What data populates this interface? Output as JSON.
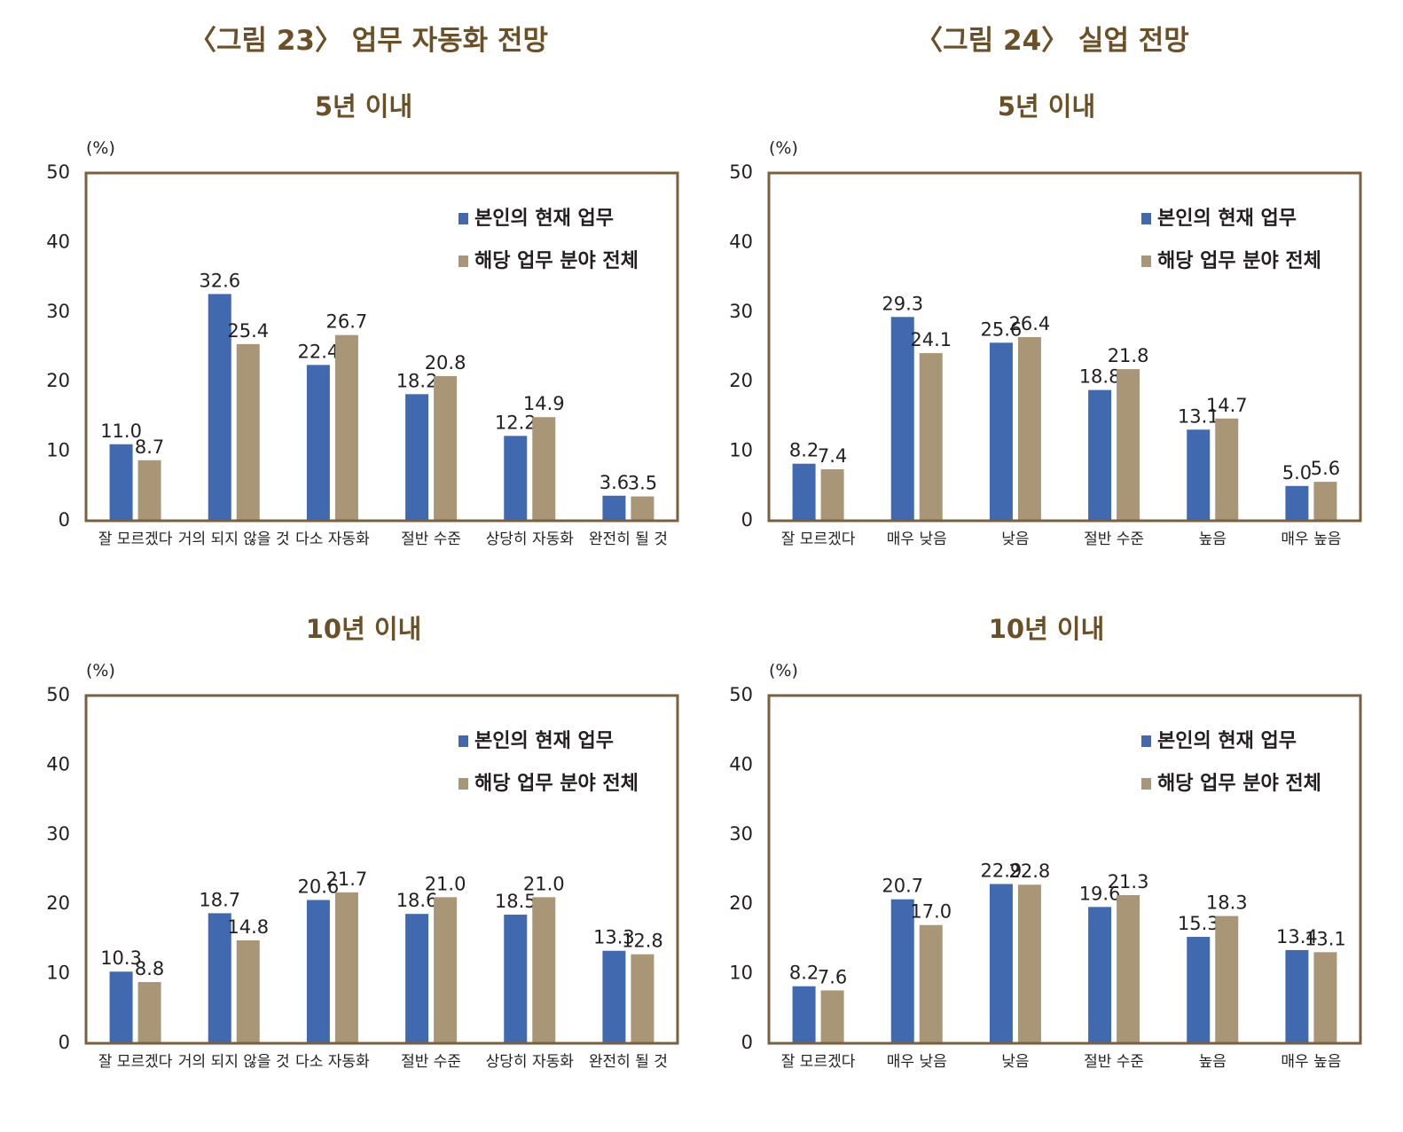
{
  "figures": [
    {
      "title": "〈그림 23〉 업무 자동화 전망"
    },
    {
      "title": "〈그림 24〉 실업 전망"
    }
  ],
  "colors": {
    "series1": "#4169b0",
    "series2": "#a89677",
    "frame": "#7a6040",
    "subtitle": "#6b4f26"
  },
  "chart_data": [
    {
      "type": "bar",
      "title": "5년 이내",
      "unit_label": "(%)",
      "ylim": [
        0,
        50
      ],
      "yticks": [
        0,
        10,
        20,
        30,
        40,
        50
      ],
      "legend": "top-right",
      "categories": [
        "잘 모르겠다",
        "거의 되지 않을 것",
        "다소 자동화",
        "절반 수준",
        "상당히 자동화",
        "완전히 될 것"
      ],
      "series": [
        {
          "name": "본인의 현재 업무",
          "values": [
            11.0,
            32.6,
            22.4,
            18.2,
            12.2,
            3.6
          ]
        },
        {
          "name": "해당 업무 분야 전체",
          "values": [
            8.7,
            25.4,
            26.7,
            20.8,
            14.9,
            3.5
          ]
        }
      ],
      "labels": [
        [
          "11.0",
          "32.6",
          "22.4",
          "18.2",
          "12.2",
          "3.6"
        ],
        [
          "8.7",
          "25.4",
          "26.7",
          "20.8",
          "14.9",
          "3.5"
        ]
      ]
    },
    {
      "type": "bar",
      "title": "5년 이내",
      "unit_label": "(%)",
      "ylim": [
        0,
        50
      ],
      "yticks": [
        0,
        10,
        20,
        30,
        40,
        50
      ],
      "legend": "top-right",
      "categories": [
        "잘 모르겠다",
        "매우 낮음",
        "낮음",
        "절반 수준",
        "높음",
        "매우 높음"
      ],
      "series": [
        {
          "name": "본인의 현재 업무",
          "values": [
            8.2,
            29.3,
            25.6,
            18.8,
            13.1,
            5.0
          ]
        },
        {
          "name": "해당 업무 분야 전체",
          "values": [
            7.4,
            24.1,
            26.4,
            21.8,
            14.7,
            5.6
          ]
        }
      ],
      "labels": [
        [
          "8.2",
          "29.3",
          "25.6",
          "18.8",
          "13.1",
          "5.0"
        ],
        [
          "7.4",
          "24.1",
          "26.4",
          "21.8",
          "14.7",
          "5.6"
        ]
      ]
    },
    {
      "type": "bar",
      "title": "10년 이내",
      "unit_label": "(%)",
      "ylim": [
        0,
        50
      ],
      "yticks": [
        0,
        10,
        20,
        30,
        40,
        50
      ],
      "legend": "top-right",
      "categories": [
        "잘 모르겠다",
        "거의 되지 않을 것",
        "다소 자동화",
        "절반 수준",
        "상당히 자동화",
        "완전히 될 것"
      ],
      "series": [
        {
          "name": "본인의 현재 업무",
          "values": [
            10.3,
            18.7,
            20.6,
            18.6,
            18.5,
            13.3
          ]
        },
        {
          "name": "해당 업무 분야 전체",
          "values": [
            8.8,
            14.8,
            21.7,
            21.0,
            21.0,
            12.8
          ]
        }
      ],
      "labels": [
        [
          "10.3",
          "18.7",
          "20.6",
          "18.6",
          "18.5",
          "13.3"
        ],
        [
          "8.8",
          "14.8",
          "21.7",
          "21.0",
          "21.0",
          "12.8"
        ]
      ]
    },
    {
      "type": "bar",
      "title": "10년 이내",
      "unit_label": "(%)",
      "ylim": [
        0,
        50
      ],
      "yticks": [
        0,
        10,
        20,
        30,
        40,
        50
      ],
      "legend": "top-right",
      "categories": [
        "잘 모르겠다",
        "매우 낮음",
        "낮음",
        "절반 수준",
        "높음",
        "매우 높음"
      ],
      "series": [
        {
          "name": "본인의 현재 업무",
          "values": [
            8.2,
            20.7,
            22.9,
            19.6,
            15.3,
            13.4
          ]
        },
        {
          "name": "해당 업무 분야 전체",
          "values": [
            7.6,
            17.0,
            22.8,
            21.3,
            18.3,
            13.1
          ]
        }
      ],
      "labels": [
        [
          "8.2",
          "20.7",
          "22.9",
          "19.6",
          "15.3",
          "13.4"
        ],
        [
          "7.6",
          "17.0",
          "22.8",
          "21.3",
          "18.3",
          "13.1"
        ]
      ]
    }
  ]
}
